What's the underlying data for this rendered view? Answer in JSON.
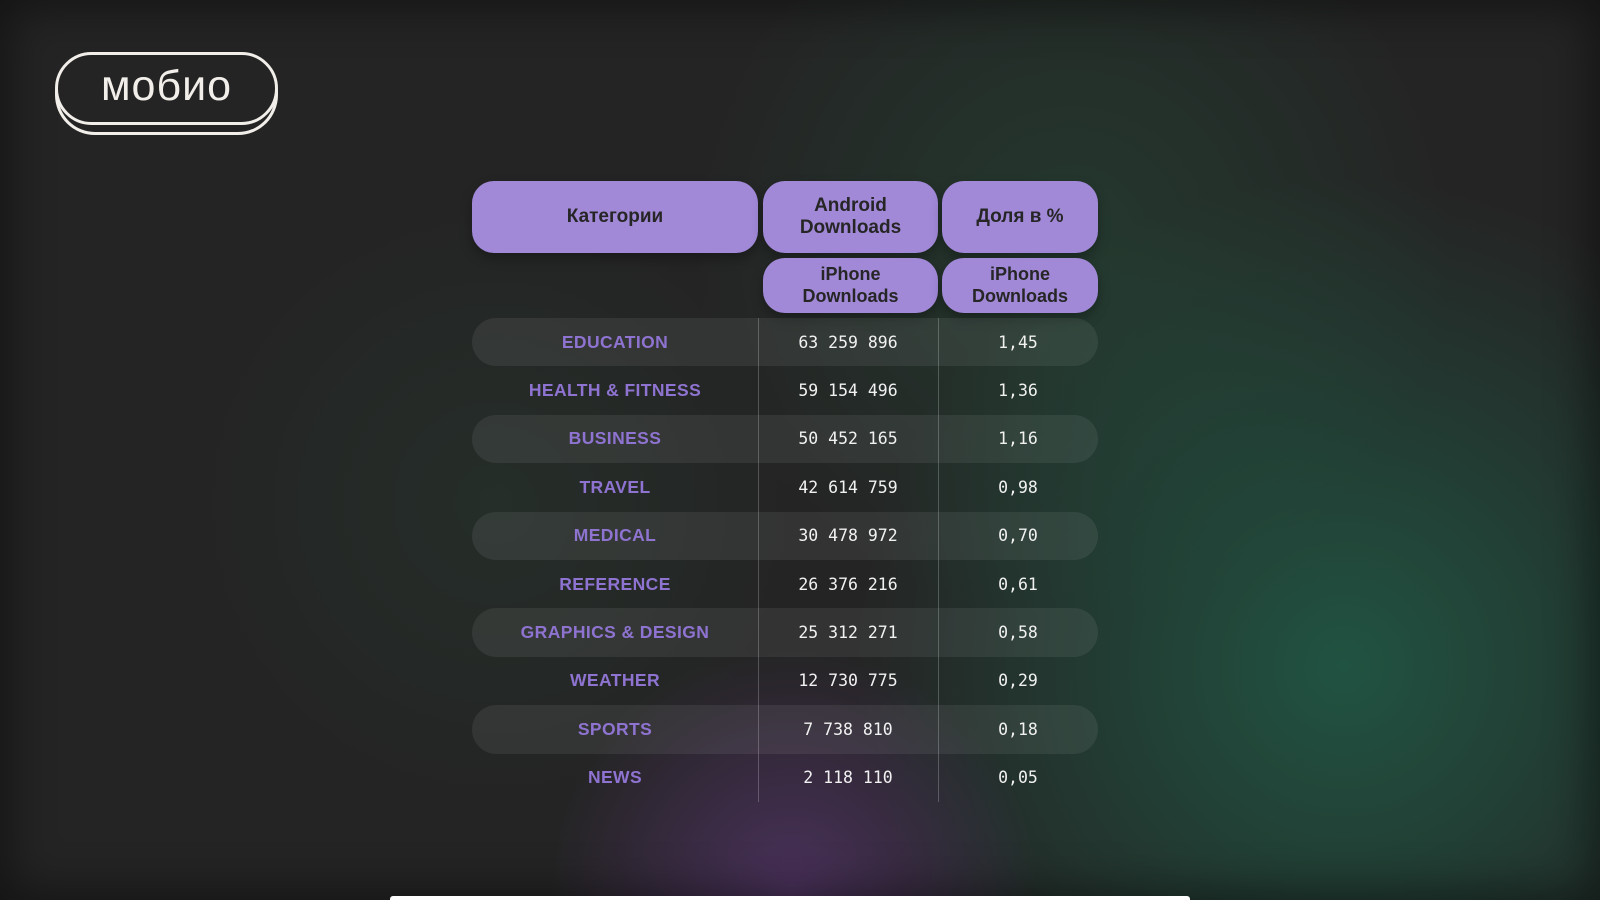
{
  "logo": {
    "text": "мобио"
  },
  "table": {
    "headers": {
      "category": "Категории",
      "android": "Android Downloads",
      "share": "Доля в %",
      "iphone_left": "iPhone Downloads",
      "iphone_right": "iPhone Downloads"
    },
    "rows": [
      {
        "category": "EDUCATION",
        "downloads": "63 259 896",
        "share": "1,45"
      },
      {
        "category": "HEALTH & FITNESS",
        "downloads": "59 154 496",
        "share": "1,36"
      },
      {
        "category": "BUSINESS",
        "downloads": "50 452 165",
        "share": "1,16"
      },
      {
        "category": "TRAVEL",
        "downloads": "42 614 759",
        "share": "0,98"
      },
      {
        "category": "MEDICAL",
        "downloads": "30 478 972",
        "share": "0,70"
      },
      {
        "category": "REFERENCE",
        "downloads": "26 376 216",
        "share": "0,61"
      },
      {
        "category": "GRAPHICS & DESIGN",
        "downloads": "25 312 271",
        "share": "0,58"
      },
      {
        "category": "WEATHER",
        "downloads": "12 730 775",
        "share": "0,29"
      },
      {
        "category": "SPORTS",
        "downloads": "7 738 810",
        "share": "0,18"
      },
      {
        "category": "NEWS",
        "downloads": "2 118 110",
        "share": "0,05"
      }
    ]
  },
  "colors": {
    "background": "#242424",
    "accent_pill": "#a189d8",
    "header_text": "#262626",
    "category_text": "#8e73d1",
    "value_text": "#f1f1f1",
    "glow_green": "#1e7a5a",
    "glow_purple": "#703e92"
  },
  "chart_data": {
    "type": "table",
    "title": "",
    "columns": [
      {
        "header": "Категории",
        "subheader": ""
      },
      {
        "header": "Android Downloads",
        "subheader": "iPhone Downloads"
      },
      {
        "header": "Доля в %",
        "subheader": "iPhone Downloads"
      }
    ],
    "rows": [
      [
        "EDUCATION",
        "63 259 896",
        "1,45"
      ],
      [
        "HEALTH & FITNESS",
        "59 154 496",
        "1,36"
      ],
      [
        "BUSINESS",
        "50 452 165",
        "1,16"
      ],
      [
        "TRAVEL",
        "42 614 759",
        "0,98"
      ],
      [
        "MEDICAL",
        "30 478 972",
        "0,70"
      ],
      [
        "REFERENCE",
        "26 376 216",
        "0,61"
      ],
      [
        "GRAPHICS & DESIGN",
        "25 312 271",
        "0,58"
      ],
      [
        "WEATHER",
        "12 730 775",
        "0,29"
      ],
      [
        "SPORTS",
        "7 738 810",
        "0,18"
      ],
      [
        "NEWS",
        "2 118 110",
        "0,05"
      ]
    ]
  }
}
